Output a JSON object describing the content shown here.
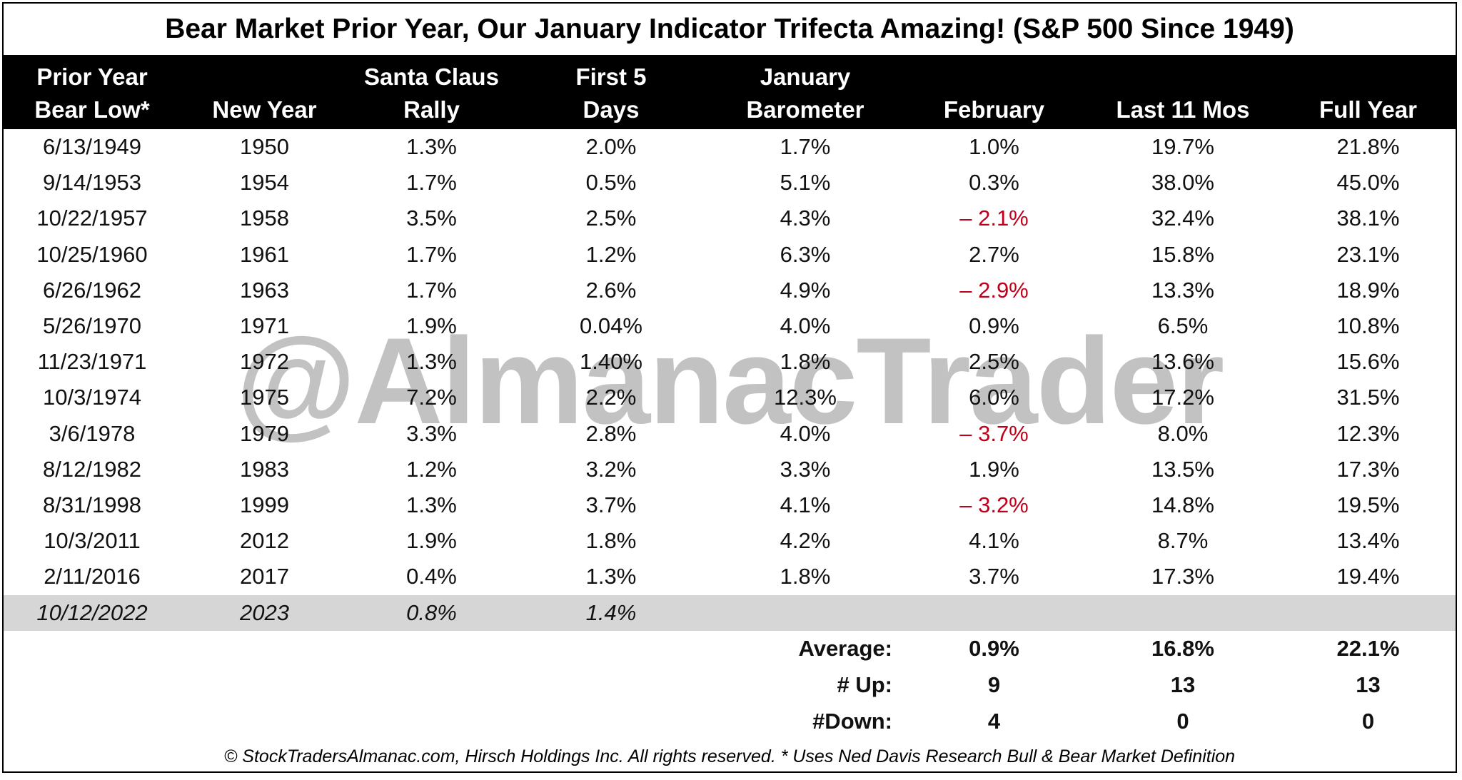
{
  "title": "Bear Market  Prior Year, Our January Indicator Trifecta Amazing! (S&P 500 Since 1949)",
  "headers": [
    {
      "lines": [
        "Prior Year",
        "Bear Low*"
      ]
    },
    {
      "lines": [
        "New Year"
      ]
    },
    {
      "lines": [
        "Santa Claus",
        "Rally"
      ]
    },
    {
      "lines": [
        "First 5",
        "Days"
      ]
    },
    {
      "lines": [
        "January",
        "Barometer"
      ]
    },
    {
      "lines": [
        "February"
      ]
    },
    {
      "lines": [
        "Last 11 Mos"
      ]
    },
    {
      "lines": [
        "Full Year"
      ]
    }
  ],
  "rows": [
    [
      "6/13/1949",
      "1950",
      "1.3%",
      "2.0%",
      "1.7%",
      "1.0%",
      "19.7%",
      "21.8%"
    ],
    [
      "9/14/1953",
      "1954",
      "1.7%",
      "0.5%",
      "5.1%",
      "0.3%",
      "38.0%",
      "45.0%"
    ],
    [
      "10/22/1957",
      "1958",
      "3.5%",
      "2.5%",
      "4.3%",
      "– 2.1%",
      "32.4%",
      "38.1%"
    ],
    [
      "10/25/1960",
      "1961",
      "1.7%",
      "1.2%",
      "6.3%",
      "2.7%",
      "15.8%",
      "23.1%"
    ],
    [
      "6/26/1962",
      "1963",
      "1.7%",
      "2.6%",
      "4.9%",
      "– 2.9%",
      "13.3%",
      "18.9%"
    ],
    [
      "5/26/1970",
      "1971",
      "1.9%",
      "0.04%",
      "4.0%",
      "0.9%",
      "6.5%",
      "10.8%"
    ],
    [
      "11/23/1971",
      "1972",
      "1.3%",
      "1.40%",
      "1.8%",
      "2.5%",
      "13.6%",
      "15.6%"
    ],
    [
      "10/3/1974",
      "1975",
      "7.2%",
      "2.2%",
      "12.3%",
      "6.0%",
      "17.2%",
      "31.5%"
    ],
    [
      "3/6/1978",
      "1979",
      "3.3%",
      "2.8%",
      "4.0%",
      "– 3.7%",
      "8.0%",
      "12.3%"
    ],
    [
      "8/12/1982",
      "1983",
      "1.2%",
      "3.2%",
      "3.3%",
      "1.9%",
      "13.5%",
      "17.3%"
    ],
    [
      "8/31/1998",
      "1999",
      "1.3%",
      "3.7%",
      "4.1%",
      "– 3.2%",
      "14.8%",
      "19.5%"
    ],
    [
      "10/3/2011",
      "2012",
      "1.9%",
      "1.8%",
      "4.2%",
      "4.1%",
      "8.7%",
      "13.4%"
    ],
    [
      "2/11/2016",
      "2017",
      "0.4%",
      "1.3%",
      "1.8%",
      "3.7%",
      "17.3%",
      "19.4%"
    ]
  ],
  "current_row": [
    "10/12/2022",
    "2023",
    "0.8%",
    "1.4%"
  ],
  "summary": [
    {
      "label": "Average:",
      "values": [
        "0.9%",
        "16.8%",
        "22.1%"
      ]
    },
    {
      "label": "# Up:",
      "values": [
        "9",
        "13",
        "13"
      ]
    },
    {
      "label": "#Down:",
      "values": [
        "4",
        "0",
        "0"
      ]
    }
  ],
  "watermark": "@AlmanacTrader",
  "footer": "© StockTradersAlmanac.com, Hirsch Holdings Inc. All rights reserved. * Uses Ned Davis Research Bull & Bear Market Definition"
}
